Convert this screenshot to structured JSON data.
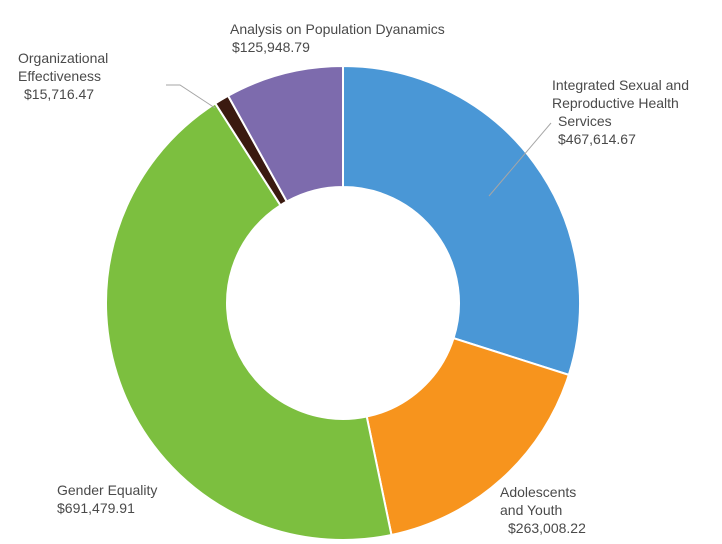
{
  "chart_data": {
    "type": "pie",
    "subtype": "donut",
    "title": "",
    "segments": [
      {
        "label": "Integrated Sexual and Reproductive Health Services",
        "value": 467614.67,
        "value_label": "$467,614.67",
        "color": "#4a97d6"
      },
      {
        "label": "Adolescents and Youth",
        "value": 263008.22,
        "value_label": "$263,008.22",
        "color": "#f7941d"
      },
      {
        "label": "Gender Equality",
        "value": 691479.91,
        "value_label": "$691,479.91",
        "color": "#7cbf3f"
      },
      {
        "label": "Organizational Effectiveness",
        "value": 15716.47,
        "value_label": "$15,716.47",
        "color": "#3b1a10"
      },
      {
        "label": "Analysis on Population Dyanamics",
        "value": 125948.79,
        "value_label": "$125,948.79",
        "color": "#7d6bad"
      }
    ],
    "labels": {
      "isrh": [
        "Integrated Sexual and",
        "Reproductive Health",
        "Services"
      ],
      "youth": [
        "Adolescents",
        "and Youth"
      ],
      "gender": [
        "Gender Equality"
      ],
      "org": [
        "Organizational",
        "Effectiveness"
      ],
      "pop": [
        "Analysis on Population Dyanamics"
      ]
    },
    "legend": "none"
  }
}
